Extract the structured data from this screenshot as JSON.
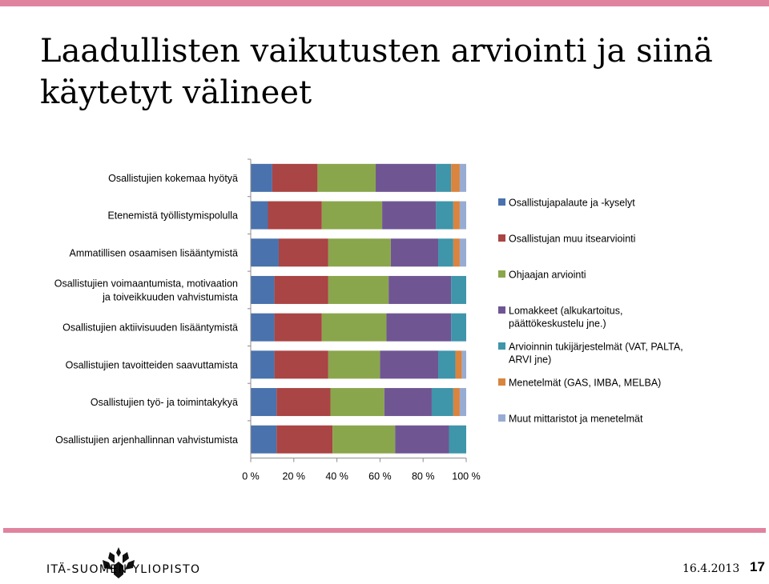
{
  "slide": {
    "title": "Laadullisten vaikutusten arviointi ja siinä käytetyt välineet",
    "logo_text": "ITÄ-SUOMEN YLIOPISTO",
    "date": "16.4.2013",
    "page_number": "17",
    "accent_color": "#e0839f"
  },
  "chart_data": {
    "type": "bar",
    "orientation": "horizontal",
    "stacked": "percent",
    "title": "",
    "xlabel": "",
    "ylabel": "",
    "xlim": [
      0,
      100
    ],
    "x_ticks": [
      "0 %",
      "20 %",
      "40 %",
      "60 %",
      "80 %",
      "100 %"
    ],
    "grid": false,
    "legend_position": "right",
    "categories": [
      [
        "Osallistujien kokemaa hyötyä"
      ],
      [
        "Etenemistä työllistymispolulla"
      ],
      [
        "Ammatillisen osaamisen lisääntymistä"
      ],
      [
        "Osallistujien voimaantumista, motivaation",
        "ja toiveikkuuden vahvistumista"
      ],
      [
        "Osallistujien aktiivisuuden lisääntymistä"
      ],
      [
        "Osallistujien tavoitteiden saavuttamista"
      ],
      [
        "Osallistujien työ- ja toimintakykyä"
      ],
      [
        "Osallistujien arjenhallinnan vahvistumista"
      ]
    ],
    "series": [
      {
        "name": "Osallistujapalaute ja -kyselyt",
        "color": "#4a72ac",
        "values": [
          10,
          8,
          13,
          11,
          11,
          11,
          12,
          12
        ]
      },
      {
        "name": "Osallistujan muu itsearviointi",
        "color": "#a94544",
        "values": [
          21,
          25,
          23,
          25,
          22,
          25,
          25,
          26
        ]
      },
      {
        "name": "Ohjaajan arviointi",
        "color": "#8aa64c",
        "values": [
          27,
          28,
          29,
          28,
          30,
          24,
          25,
          29
        ]
      },
      {
        "name": "Lomakkeet (alkukartoitus, päättökeskustelu jne.)",
        "color": "#6f5693",
        "values": [
          28,
          25,
          22,
          29,
          30,
          27,
          22,
          25
        ]
      },
      {
        "name": "Arvioinnin tukijärjestelmät (VAT, PALTA, ARVI jne)",
        "color": "#3f95aa",
        "values": [
          7,
          8,
          7,
          7,
          7,
          8,
          10,
          8
        ]
      },
      {
        "name": "Menetelmät (GAS, IMBA, MELBA)",
        "color": "#d9843f",
        "values": [
          4,
          3,
          3,
          0,
          0,
          3,
          3,
          0
        ]
      },
      {
        "name": "Muut mittaristot ja menetelmät",
        "color": "#98acd3",
        "values": [
          3,
          3,
          3,
          0,
          0,
          2,
          3,
          0
        ]
      }
    ]
  }
}
